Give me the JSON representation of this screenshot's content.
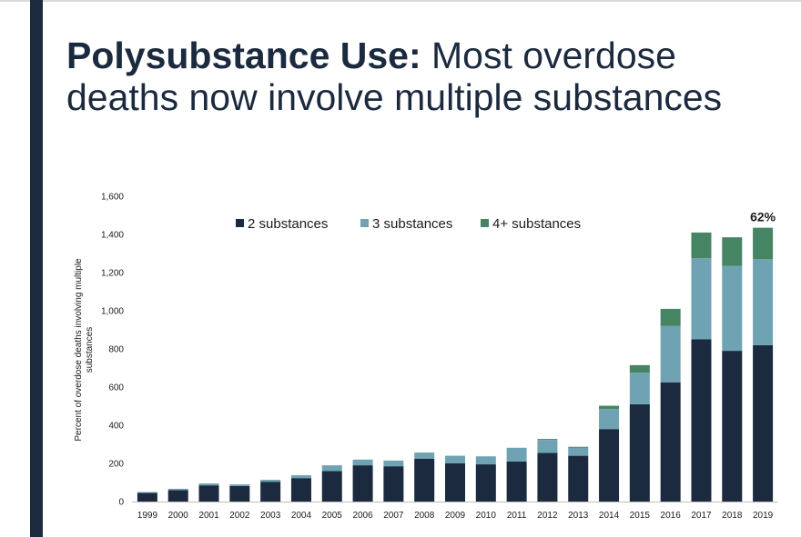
{
  "slide": {
    "title_lead": "Polysubstance Use:",
    "title_rest": " Most overdose deaths now involve multiple substances"
  },
  "colors": {
    "accent_bar": "#1b2a3e",
    "series_2": "#1b2a3e",
    "series_3": "#6fa3b3",
    "series_4": "#458563"
  },
  "chart_data": {
    "type": "bar",
    "stacked": true,
    "title": "",
    "xlabel": "",
    "ylabel": "Percent of overdose deaths involving multiple substances",
    "ylim": [
      0,
      1600
    ],
    "yticks": [
      0,
      200,
      400,
      600,
      800,
      1000,
      1200,
      1400,
      1600
    ],
    "ytick_labels": [
      "0",
      "200",
      "400",
      "600",
      "800",
      "1,000",
      "1,200",
      "1,400",
      "1,600"
    ],
    "grid": false,
    "legend_position": "top",
    "categories": [
      "1999",
      "2000",
      "2001",
      "2002",
      "2003",
      "2004",
      "2005",
      "2006",
      "2007",
      "2008",
      "2009",
      "2010",
      "2011",
      "2012",
      "2013",
      "2014",
      "2015",
      "2016",
      "2017",
      "2018",
      "2019"
    ],
    "series": [
      {
        "name": "2 substances",
        "values": [
          45,
          60,
          85,
          82,
          104,
          123,
          160,
          190,
          185,
          225,
          200,
          195,
          210,
          255,
          240,
          380,
          510,
          625,
          850,
          790,
          820
        ]
      },
      {
        "name": "3 substances",
        "values": [
          5,
          7,
          10,
          8,
          10,
          15,
          30,
          30,
          30,
          32,
          40,
          42,
          72,
          68,
          42,
          105,
          165,
          295,
          425,
          445,
          450
        ]
      },
      {
        "name": "4+ substances",
        "values": [
          0,
          0,
          0,
          0,
          0,
          0,
          0,
          0,
          0,
          0,
          0,
          0,
          0,
          5,
          5,
          17,
          40,
          90,
          135,
          150,
          165
        ]
      }
    ],
    "annotations": [
      {
        "category": "2019",
        "text": "62%"
      }
    ]
  }
}
